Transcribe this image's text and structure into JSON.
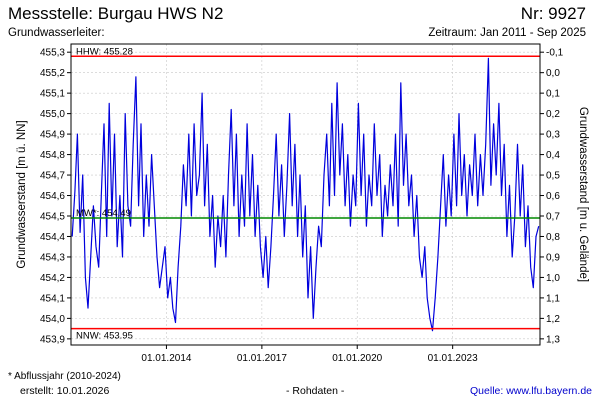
{
  "header": {
    "title": "Messstelle: Burgau HWS N2",
    "number": "Nr: 9927",
    "aquifer_label": "Grundwasserleiter:",
    "period": "Zeitraum: Jan 2011 - Sep 2025"
  },
  "footer": {
    "footnote": "* Abflussjahr (2010-2024)",
    "created": "erstellt:  10.01.2026",
    "raw_data": "- Rohdaten -",
    "source": "Quelle: www.lfu.bayern.de"
  },
  "colors": {
    "series": "#0000dd",
    "extreme_lines": "#ff0000",
    "mean_line": "#008800",
    "grid": "#c8c8c8"
  },
  "chart_data": {
    "type": "line",
    "ylabel": "Grundwasserstand [m ü. NN]",
    "y2label": "Grundwasserstand [m u. Gelände]",
    "ylim": [
      453.87,
      455.34
    ],
    "y_ticks": [
      "453,9",
      "454,0",
      "454,1",
      "454,2",
      "454,3",
      "454,4",
      "454,5",
      "454,6",
      "454,7",
      "454,8",
      "454,9",
      "455,0",
      "455,1",
      "455,2",
      "455,3"
    ],
    "y2_ticks": [
      "1,3",
      "1,2",
      "1,1",
      "1,0",
      "0,9",
      "0,8",
      "0,7",
      "0,6",
      "0,5",
      "0,4",
      "0,3",
      "0,2",
      "0,1",
      "0,0",
      "-0,1"
    ],
    "y2_reference": 455.2,
    "xlim": [
      "2011-01-01",
      "2025-09-30"
    ],
    "x_ticks": [
      {
        "date": "2014-01-01",
        "label": "01.01.2014"
      },
      {
        "date": "2017-01-01",
        "label": "01.01.2017"
      },
      {
        "date": "2020-01-01",
        "label": "01.01.2020"
      },
      {
        "date": "2023-01-01",
        "label": "01.01.2023"
      }
    ],
    "grid": true,
    "reference_lines": [
      {
        "key": "HHW",
        "label": "HHW: 455.28",
        "value": 455.28
      },
      {
        "key": "MW",
        "label": "MW*: 454.49",
        "value": 454.49
      },
      {
        "key": "NNW",
        "label": "NNW: 453.95",
        "value": 453.95
      }
    ],
    "series": [
      {
        "x": [
          "2011-01",
          "2011-02",
          "2011-03",
          "2011-04",
          "2011-05",
          "2011-06",
          "2011-07",
          "2011-08",
          "2011-09",
          "2011-10",
          "2011-11",
          "2011-12",
          "2012-01",
          "2012-02",
          "2012-03",
          "2012-04",
          "2012-05",
          "2012-06",
          "2012-07",
          "2012-08",
          "2012-09",
          "2012-10",
          "2012-11",
          "2012-12",
          "2013-01",
          "2013-02",
          "2013-03",
          "2013-04",
          "2013-05",
          "2013-06",
          "2013-07",
          "2013-08",
          "2013-09",
          "2013-10",
          "2013-11",
          "2013-12",
          "2014-01",
          "2014-02",
          "2014-03",
          "2014-04",
          "2014-05",
          "2014-06",
          "2014-07",
          "2014-08",
          "2014-09",
          "2014-10",
          "2014-11",
          "2014-12",
          "2015-01",
          "2015-02",
          "2015-03",
          "2015-04",
          "2015-05",
          "2015-06",
          "2015-07",
          "2015-08",
          "2015-09",
          "2015-10",
          "2015-11",
          "2015-12",
          "2016-01",
          "2016-02",
          "2016-03",
          "2016-04",
          "2016-05",
          "2016-06",
          "2016-07",
          "2016-08",
          "2016-09",
          "2016-10",
          "2016-11",
          "2016-12",
          "2017-01",
          "2017-02",
          "2017-03",
          "2017-04",
          "2017-05",
          "2017-06",
          "2017-07",
          "2017-08",
          "2017-09",
          "2017-10",
          "2017-11",
          "2017-12",
          "2018-01",
          "2018-02",
          "2018-03",
          "2018-04",
          "2018-05",
          "2018-06",
          "2018-07",
          "2018-08",
          "2018-09",
          "2018-10",
          "2018-11",
          "2018-12",
          "2019-01",
          "2019-02",
          "2019-03",
          "2019-04",
          "2019-05",
          "2019-06",
          "2019-07",
          "2019-08",
          "2019-09",
          "2019-10",
          "2019-11",
          "2019-12",
          "2020-01",
          "2020-02",
          "2020-03",
          "2020-04",
          "2020-05",
          "2020-06",
          "2020-07",
          "2020-08",
          "2020-09",
          "2020-10",
          "2020-11",
          "2020-12",
          "2021-01",
          "2021-02",
          "2021-03",
          "2021-04",
          "2021-05",
          "2021-06",
          "2021-07",
          "2021-08",
          "2021-09",
          "2021-10",
          "2021-11",
          "2021-12",
          "2022-01",
          "2022-02",
          "2022-03",
          "2022-04",
          "2022-05",
          "2022-06",
          "2022-07",
          "2022-08",
          "2022-09",
          "2022-10",
          "2022-11",
          "2022-12",
          "2023-01",
          "2023-02",
          "2023-03",
          "2023-04",
          "2023-05",
          "2023-06",
          "2023-07",
          "2023-08",
          "2023-09",
          "2023-10",
          "2023-11",
          "2023-12",
          "2024-01",
          "2024-02",
          "2024-03",
          "2024-04",
          "2024-05",
          "2024-06",
          "2024-07",
          "2024-08",
          "2024-09",
          "2024-10",
          "2024-11",
          "2024-12",
          "2025-01",
          "2025-02",
          "2025-03",
          "2025-04",
          "2025-05",
          "2025-06",
          "2025-07",
          "2025-08",
          "2025-09"
        ],
        "values": [
          454.4,
          454.62,
          454.9,
          454.42,
          454.7,
          454.2,
          454.05,
          454.3,
          454.55,
          454.35,
          454.25,
          454.6,
          454.95,
          454.4,
          455.05,
          454.5,
          454.9,
          454.35,
          454.6,
          454.3,
          455.0,
          454.55,
          454.45,
          454.85,
          455.18,
          454.55,
          454.95,
          454.4,
          454.7,
          454.45,
          454.8,
          454.55,
          454.3,
          454.15,
          454.25,
          454.35,
          454.1,
          454.2,
          454.05,
          453.98,
          454.25,
          454.45,
          454.75,
          454.55,
          454.9,
          454.5,
          454.95,
          454.6,
          454.7,
          455.1,
          454.55,
          454.85,
          454.4,
          454.6,
          454.25,
          454.5,
          454.35,
          454.6,
          454.3,
          454.7,
          455.02,
          454.55,
          454.9,
          454.4,
          454.7,
          454.45,
          454.95,
          454.5,
          454.8,
          454.4,
          454.65,
          454.35,
          454.2,
          454.4,
          454.15,
          454.35,
          454.6,
          454.9,
          454.5,
          454.75,
          454.4,
          454.65,
          455.0,
          454.55,
          454.85,
          454.4,
          454.7,
          454.3,
          454.55,
          454.1,
          454.35,
          454.0,
          454.25,
          454.45,
          454.35,
          454.7,
          454.9,
          454.55,
          455.05,
          454.6,
          455.15,
          454.7,
          454.95,
          454.55,
          454.8,
          454.45,
          454.7,
          454.55,
          455.05,
          454.6,
          454.9,
          454.45,
          454.7,
          454.55,
          454.95,
          454.6,
          454.8,
          454.4,
          454.65,
          454.5,
          454.75,
          454.55,
          454.9,
          454.45,
          455.15,
          454.65,
          454.9,
          454.55,
          454.7,
          454.4,
          454.6,
          454.3,
          454.2,
          454.35,
          454.1,
          454.0,
          453.94,
          454.1,
          454.3,
          454.55,
          454.8,
          454.45,
          454.7,
          454.5,
          454.9,
          454.55,
          455.0,
          454.6,
          454.8,
          454.5,
          454.75,
          454.6,
          454.9,
          454.55,
          454.8,
          454.6,
          454.85,
          455.27,
          454.65,
          454.95,
          454.7,
          455.05,
          454.6,
          454.85,
          454.4,
          454.65,
          454.3,
          454.5,
          454.85,
          454.5,
          454.75,
          454.35,
          454.55,
          454.25,
          454.15,
          454.4,
          454.45
        ]
      }
    ]
  }
}
